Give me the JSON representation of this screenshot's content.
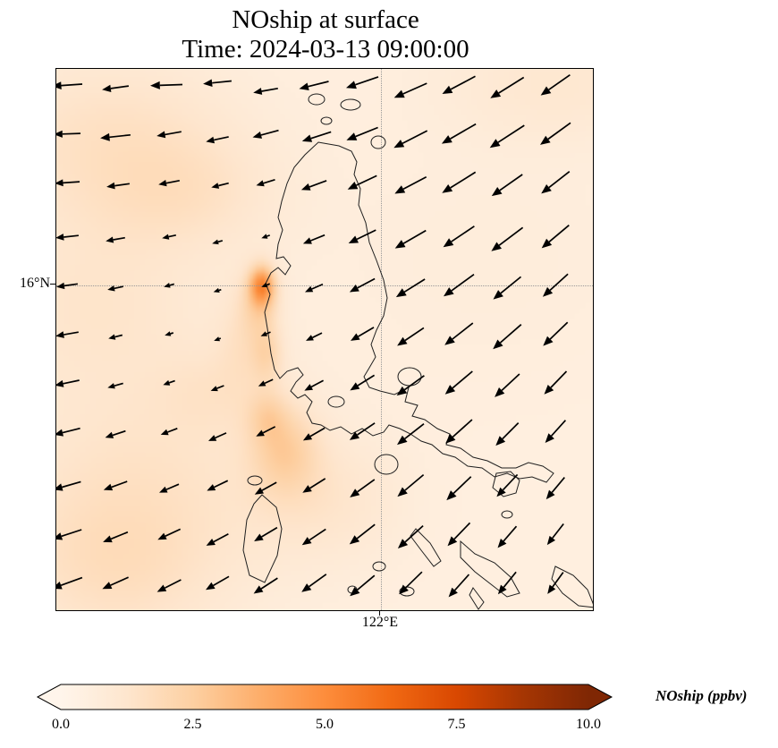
{
  "figure": {
    "title_line1": "NOship at surface",
    "title_line2": "Time: 2024-03-13 09:00:00"
  },
  "chart_data": {
    "type": "heatmap",
    "title": "NOship at surface",
    "time": "2024-03-13 09:00:00",
    "variable": "NOship",
    "units": "ppbv",
    "axes": {
      "x_tick": {
        "label": "122°E",
        "px": 363
      },
      "y_tick": {
        "label": "16°N",
        "px": 242
      }
    },
    "colorbar": {
      "label": "NOship (ppbv)",
      "ticks": [
        "0.0",
        "2.5",
        "5.0",
        "7.5",
        "10.0"
      ],
      "tick_values": [
        0,
        2.5,
        5,
        7.5,
        10
      ],
      "vmin": 0,
      "vmax": 10,
      "colormap": "Oranges",
      "extend": "both"
    },
    "colormap_stops": [
      [
        255,
        245,
        235
      ],
      [
        254,
        230,
        206
      ],
      [
        253,
        208,
        162
      ],
      [
        253,
        174,
        107
      ],
      [
        253,
        141,
        60
      ],
      [
        241,
        105,
        19
      ],
      [
        217,
        72,
        1
      ],
      [
        166,
        54,
        3
      ],
      [
        127,
        39,
        4
      ]
    ],
    "field": {
      "base_value": 0.5,
      "vmax": 10,
      "blobs": [
        [
          230,
          242,
          9,
          14,
          3.5
        ],
        [
          228,
          258,
          14,
          26,
          1.6
        ],
        [
          236,
          318,
          12,
          22,
          1.2
        ],
        [
          255,
          425,
          26,
          34,
          1.6
        ],
        [
          236,
          388,
          15,
          20,
          1.0
        ],
        [
          90,
          470,
          110,
          100,
          0.9
        ],
        [
          60,
          560,
          80,
          60,
          0.7
        ],
        [
          40,
          260,
          90,
          70,
          0.7
        ],
        [
          60,
          80,
          100,
          70,
          1.0
        ],
        [
          150,
          140,
          70,
          45,
          0.65
        ],
        [
          560,
          15,
          90,
          45,
          0.6
        ],
        [
          480,
          210,
          130,
          100,
          0.2
        ],
        [
          300,
          480,
          60,
          50,
          0.7
        ],
        [
          180,
          360,
          45,
          35,
          0.5
        ],
        [
          210,
          300,
          20,
          40,
          0.7
        ]
      ]
    },
    "quiver": [
      [
        0.02,
        0.03,
        176,
        34
      ],
      [
        0.11,
        0.035,
        172,
        30
      ],
      [
        0.205,
        0.03,
        178,
        36
      ],
      [
        0.3,
        0.025,
        174,
        32
      ],
      [
        0.39,
        0.04,
        170,
        28
      ],
      [
        0.48,
        0.03,
        166,
        34
      ],
      [
        0.57,
        0.025,
        161,
        38
      ],
      [
        0.66,
        0.04,
        156,
        40
      ],
      [
        0.75,
        0.03,
        152,
        42
      ],
      [
        0.84,
        0.035,
        148,
        44
      ],
      [
        0.93,
        0.03,
        145,
        40
      ],
      [
        0.02,
        0.12,
        178,
        30
      ],
      [
        0.11,
        0.125,
        174,
        34
      ],
      [
        0.21,
        0.12,
        170,
        28
      ],
      [
        0.3,
        0.13,
        168,
        26
      ],
      [
        0.39,
        0.12,
        165,
        30
      ],
      [
        0.485,
        0.125,
        162,
        34
      ],
      [
        0.57,
        0.12,
        158,
        38
      ],
      [
        0.66,
        0.13,
        153,
        42
      ],
      [
        0.75,
        0.12,
        150,
        44
      ],
      [
        0.84,
        0.125,
        147,
        46
      ],
      [
        0.93,
        0.12,
        144,
        42
      ],
      [
        0.02,
        0.21,
        176,
        28
      ],
      [
        0.115,
        0.215,
        172,
        26
      ],
      [
        0.21,
        0.21,
        169,
        24
      ],
      [
        0.305,
        0.215,
        166,
        20
      ],
      [
        0.39,
        0.21,
        163,
        22
      ],
      [
        0.48,
        0.215,
        160,
        30
      ],
      [
        0.57,
        0.21,
        155,
        36
      ],
      [
        0.66,
        0.215,
        152,
        40
      ],
      [
        0.75,
        0.21,
        148,
        44
      ],
      [
        0.84,
        0.215,
        145,
        42
      ],
      [
        0.93,
        0.21,
        142,
        40
      ],
      [
        0.02,
        0.31,
        174,
        26
      ],
      [
        0.11,
        0.315,
        170,
        22
      ],
      [
        0.21,
        0.31,
        167,
        16
      ],
      [
        0.3,
        0.32,
        164,
        12
      ],
      [
        0.39,
        0.31,
        161,
        10
      ],
      [
        0.48,
        0.315,
        158,
        26
      ],
      [
        0.57,
        0.31,
        154,
        34
      ],
      [
        0.66,
        0.315,
        150,
        40
      ],
      [
        0.75,
        0.31,
        146,
        42
      ],
      [
        0.84,
        0.315,
        143,
        44
      ],
      [
        0.93,
        0.31,
        140,
        40
      ],
      [
        0.02,
        0.4,
        172,
        24
      ],
      [
        0.11,
        0.405,
        168,
        18
      ],
      [
        0.21,
        0.4,
        165,
        12
      ],
      [
        0.3,
        0.41,
        162,
        9
      ],
      [
        0.39,
        0.4,
        159,
        10
      ],
      [
        0.48,
        0.405,
        156,
        22
      ],
      [
        0.57,
        0.4,
        152,
        32
      ],
      [
        0.66,
        0.405,
        148,
        38
      ],
      [
        0.75,
        0.4,
        144,
        42
      ],
      [
        0.84,
        0.405,
        141,
        40
      ],
      [
        0.93,
        0.4,
        138,
        38
      ],
      [
        0.02,
        0.49,
        170,
        26
      ],
      [
        0.11,
        0.495,
        166,
        16
      ],
      [
        0.21,
        0.49,
        163,
        10
      ],
      [
        0.3,
        0.5,
        160,
        8
      ],
      [
        0.39,
        0.49,
        157,
        12
      ],
      [
        0.48,
        0.495,
        154,
        20
      ],
      [
        0.57,
        0.49,
        150,
        30
      ],
      [
        0.66,
        0.495,
        146,
        36
      ],
      [
        0.75,
        0.49,
        142,
        40
      ],
      [
        0.84,
        0.495,
        139,
        42
      ],
      [
        0.93,
        0.49,
        136,
        38
      ],
      [
        0.02,
        0.58,
        168,
        28
      ],
      [
        0.11,
        0.585,
        164,
        18
      ],
      [
        0.21,
        0.58,
        161,
        14
      ],
      [
        0.3,
        0.59,
        158,
        16
      ],
      [
        0.39,
        0.58,
        155,
        18
      ],
      [
        0.48,
        0.585,
        152,
        24
      ],
      [
        0.57,
        0.58,
        148,
        32
      ],
      [
        0.66,
        0.585,
        144,
        38
      ],
      [
        0.75,
        0.58,
        140,
        40
      ],
      [
        0.84,
        0.585,
        137,
        38
      ],
      [
        0.93,
        0.58,
        134,
        36
      ],
      [
        0.02,
        0.67,
        166,
        30
      ],
      [
        0.11,
        0.675,
        162,
        24
      ],
      [
        0.21,
        0.67,
        159,
        20
      ],
      [
        0.3,
        0.68,
        156,
        22
      ],
      [
        0.39,
        0.67,
        153,
        24
      ],
      [
        0.48,
        0.675,
        150,
        28
      ],
      [
        0.57,
        0.67,
        146,
        34
      ],
      [
        0.66,
        0.675,
        142,
        38
      ],
      [
        0.75,
        0.67,
        138,
        40
      ],
      [
        0.84,
        0.675,
        135,
        36
      ],
      [
        0.93,
        0.67,
        132,
        34
      ],
      [
        0.02,
        0.77,
        164,
        32
      ],
      [
        0.11,
        0.77,
        160,
        28
      ],
      [
        0.21,
        0.775,
        157,
        24
      ],
      [
        0.3,
        0.77,
        154,
        26
      ],
      [
        0.39,
        0.775,
        151,
        28
      ],
      [
        0.48,
        0.77,
        148,
        30
      ],
      [
        0.57,
        0.775,
        144,
        34
      ],
      [
        0.66,
        0.77,
        140,
        38
      ],
      [
        0.75,
        0.775,
        136,
        38
      ],
      [
        0.84,
        0.77,
        133,
        34
      ],
      [
        0.93,
        0.775,
        130,
        32
      ],
      [
        0.02,
        0.86,
        162,
        34
      ],
      [
        0.11,
        0.865,
        158,
        30
      ],
      [
        0.21,
        0.86,
        155,
        28
      ],
      [
        0.3,
        0.87,
        152,
        28
      ],
      [
        0.39,
        0.86,
        149,
        30
      ],
      [
        0.48,
        0.865,
        146,
        32
      ],
      [
        0.57,
        0.86,
        142,
        36
      ],
      [
        0.66,
        0.865,
        138,
        38
      ],
      [
        0.75,
        0.86,
        134,
        36
      ],
      [
        0.84,
        0.865,
        131,
        32
      ],
      [
        0.93,
        0.86,
        128,
        30
      ],
      [
        0.02,
        0.95,
        160,
        36
      ],
      [
        0.11,
        0.95,
        156,
        32
      ],
      [
        0.21,
        0.955,
        153,
        30
      ],
      [
        0.3,
        0.95,
        150,
        30
      ],
      [
        0.39,
        0.955,
        147,
        32
      ],
      [
        0.48,
        0.95,
        144,
        34
      ],
      [
        0.57,
        0.955,
        140,
        36
      ],
      [
        0.66,
        0.95,
        136,
        36
      ],
      [
        0.75,
        0.955,
        132,
        34
      ],
      [
        0.84,
        0.95,
        129,
        32
      ],
      [
        0.93,
        0.95,
        126,
        30
      ]
    ],
    "coastlines": [
      "M293,82 L316,86 L330,92 L336,104 L333,118 L340,134 L338,152 L346,172 L350,194 L358,214 L366,236 L370,256 L366,276 L358,292 L352,308 L357,322 L350,334 L344,344 L350,356 L362,360 L378,364 L394,356 L390,372 L404,376 L398,388 L412,392 L426,402 L440,408 L436,420 L452,424 L466,434 L482,438 L498,446 L514,446 L528,440 L544,444 L556,452 L548,462 L532,456 L518,458 L504,452 L490,456 L476,446 L460,444 L446,434 L432,430 L420,420 L408,416 L396,408 L384,402 L372,398 L366,406 L354,410 L342,402 L330,408 L318,400 L306,404 L296,398 L286,396 L280,384 L286,372 L278,364 L270,368 L262,360 L268,350 L276,342 L270,334 L258,338 L250,346 L244,336 L240,318 L237,296 L233,272 L239,252 L234,240 L240,228 L248,222 L256,230 L262,220 L254,210 L246,212 L248,196 L253,180 L248,166 L252,148 L258,128 L266,110 L278,96 Z",
      "M282,34 a9,6 0 1,0 18,0 a9,6 0 1,0 -18,0",
      "M318,40 a11,6 0 1,0 22,0 a11,6 0 1,0 -22,0",
      "M352,82 a8,7 0 1,0 16,0 a8,7 0 1,0 -16,0",
      "M296,58 a6,4 0 1,0 12,0 a6,4 0 1,0 -12,0",
      "M382,344 a13,10 0 1,0 26,0 a13,10 0 1,0 -26,0",
      "M356,442 a13,11 0 1,0 26,0 a13,11 0 1,0 -26,0",
      "M304,372 a9,6 0 1,0 18,0 a9,6 0 1,0 -18,0",
      "M230,476 L246,490 L252,514 L247,544 L233,574 L216,566 L209,538 L213,504 L221,486 Z",
      "M214,460 a8,5 0 1,0 16,0 a8,5 0 1,0 -16,0",
      "M492,452 L508,450 L518,460 L514,474 L500,478 L488,468 Z",
      "M402,514 L418,530 L430,550 L422,556 L408,538 L396,522 Z",
      "M452,528 L468,542 L490,552 L508,568 L518,586 L504,590 L486,576 L468,562 L452,546 Z",
      "M466,580 L478,596 L472,604 L462,588 Z",
      "M558,556 L578,566 L594,582 L602,602 L584,600 L566,586 L554,570 Z",
      "M354,556 a7,5 0 1,0 14,0 a7,5 0 1,0 -14,0",
      "M384,584 a8,5 0 1,0 16,0 a8,5 0 1,0 -16,0",
      "M326,582 a5,4 0 1,0 10,0 a5,4 0 1,0 -10,0",
      "M498,498 a6,4 0 1,0 12,0 a6,4 0 1,0 -12,0"
    ]
  }
}
